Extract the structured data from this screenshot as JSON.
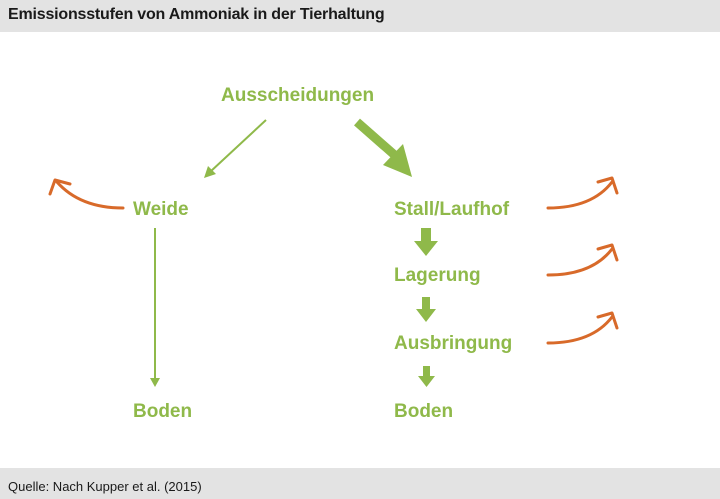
{
  "title": "Emissionsstufen von Ammoniak in der Tierhaltung",
  "source": "Quelle: Nach Kupper et al. (2015)",
  "colors": {
    "node_text": "#8fb94a",
    "flow_arrow": "#8fb94a",
    "emission_arrow": "#d86a2a",
    "background": "#e3e3e3",
    "panel": "#ffffff"
  },
  "nodes": {
    "excretions": "Ausscheidungen",
    "pasture": "Weide",
    "pasture_soil": "Boden",
    "barn": "Stall/Laufhof",
    "storage": "Lagerung",
    "spreading": "Ausbringung",
    "barn_soil": "Boden"
  }
}
